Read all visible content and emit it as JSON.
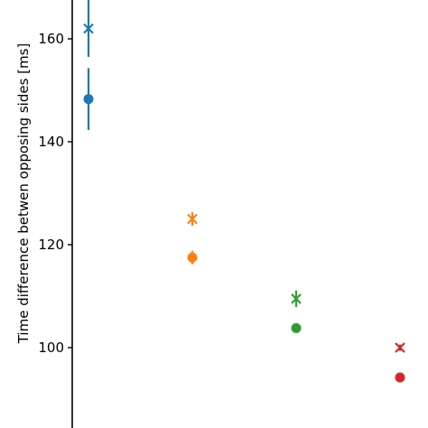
{
  "chart_data": {
    "type": "scatter",
    "title": "",
    "xlabel": "",
    "ylabel": "Time difference betwen opposing sides [ms]",
    "ylim": [
      87.5,
      169
    ],
    "yticks": [
      100,
      120,
      140,
      160
    ],
    "ytick_labels": [
      "100",
      "120",
      "140",
      "160"
    ],
    "x_ticks_visible": false,
    "grid": false,
    "legend": "none",
    "series": [
      {
        "color": "#1f77b4",
        "points": [
          {
            "x": 1,
            "y": 162.0,
            "marker": "x",
            "err_low": 156.5,
            "err_high": 169.0
          },
          {
            "x": 1,
            "y": 148.3,
            "marker": "circle",
            "err_low": 142.3,
            "err_high": 154.3
          }
        ]
      },
      {
        "color": "#ff7f0e",
        "points": [
          {
            "x": 2,
            "y": 125.0,
            "marker": "x",
            "err_low": 123.7,
            "err_high": 126.3
          },
          {
            "x": 2,
            "y": 117.5,
            "marker": "circle",
            "err_low": 116.2,
            "err_high": 118.8
          }
        ]
      },
      {
        "color": "#2ca02c",
        "points": [
          {
            "x": 3,
            "y": 109.5,
            "marker": "x",
            "err_low": 107.9,
            "err_high": 111.1
          },
          {
            "x": 3,
            "y": 103.8,
            "marker": "circle",
            "err_low": 103.1,
            "err_high": 104.5
          }
        ]
      },
      {
        "color": "#d62728",
        "points": [
          {
            "x": 4,
            "y": 100.0,
            "marker": "x",
            "err_low": 99.4,
            "err_high": 100.6
          },
          {
            "x": 4,
            "y": 94.2,
            "marker": "circle",
            "err_low": 93.4,
            "err_high": 95.0
          }
        ]
      }
    ]
  }
}
